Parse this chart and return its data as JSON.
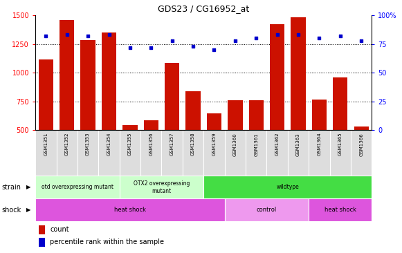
{
  "title": "GDS23 / CG16952_at",
  "samples": [
    "GSM1351",
    "GSM1352",
    "GSM1353",
    "GSM1354",
    "GSM1355",
    "GSM1356",
    "GSM1357",
    "GSM1358",
    "GSM1359",
    "GSM1360",
    "GSM1361",
    "GSM1362",
    "GSM1363",
    "GSM1364",
    "GSM1365",
    "GSM1366"
  ],
  "counts": [
    1115,
    1455,
    1285,
    1350,
    545,
    590,
    1085,
    840,
    650,
    760,
    760,
    1420,
    1480,
    770,
    960,
    530
  ],
  "percentiles": [
    82,
    83,
    82,
    83,
    72,
    72,
    78,
    73,
    70,
    78,
    80,
    83,
    83,
    80,
    82,
    78
  ],
  "ylim_left": [
    500,
    1500
  ],
  "ylim_right": [
    0,
    100
  ],
  "yticks_left": [
    500,
    750,
    1000,
    1250,
    1500
  ],
  "yticks_right": [
    0,
    25,
    50,
    75,
    100
  ],
  "bar_color": "#cc1100",
  "dot_color": "#0000cc",
  "grid_values": [
    750,
    1000,
    1250
  ],
  "strain_groups": [
    {
      "label": "otd overexpressing mutant",
      "start": 0,
      "end": 4,
      "color": "#ccffcc"
    },
    {
      "label": "OTX2 overexpressing\nmutant",
      "start": 4,
      "end": 8,
      "color": "#ccffcc"
    },
    {
      "label": "wildtype",
      "start": 8,
      "end": 16,
      "color": "#44dd44"
    }
  ],
  "shock_groups": [
    {
      "label": "heat shock",
      "start": 0,
      "end": 9,
      "color": "#dd55dd"
    },
    {
      "label": "control",
      "start": 9,
      "end": 13,
      "color": "#ee99ee"
    },
    {
      "label": "heat shock",
      "start": 13,
      "end": 16,
      "color": "#dd55dd"
    }
  ],
  "legend_items": [
    {
      "label": "count",
      "color": "#cc1100"
    },
    {
      "label": "percentile rank within the sample",
      "color": "#0000cc"
    }
  ],
  "tick_fontsize": 5.5,
  "bar_width": 0.7
}
